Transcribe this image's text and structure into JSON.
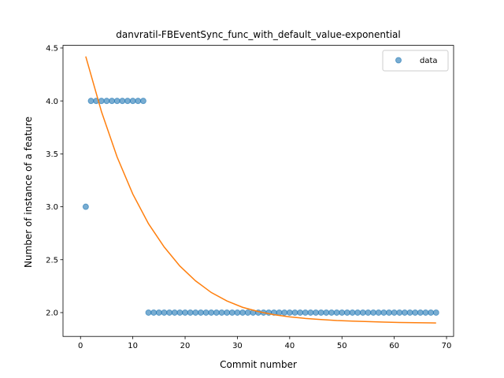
{
  "chart_data": {
    "type": "scatter",
    "title": "danvratil-FBEventSync_func_with_default_value-exponential",
    "xlabel": "Commit number",
    "ylabel": "Number of instance of a feature",
    "xlim": [
      -3.35,
      71.35
    ],
    "ylim": [
      1.775,
      4.525
    ],
    "xticks": [
      0,
      10,
      20,
      30,
      40,
      50,
      60,
      70
    ],
    "yticks": [
      2.0,
      2.5,
      3.0,
      3.5,
      4.0,
      4.5
    ],
    "ytick_labels": [
      "2.0",
      "2.5",
      "3.0",
      "3.5",
      "4.0",
      "4.5"
    ],
    "grid": false,
    "legend": {
      "position": "top-right",
      "entries": [
        "data"
      ]
    },
    "colors": {
      "data": "#1f77b4",
      "fit": "#ff7f0e"
    },
    "series": [
      {
        "name": "data",
        "kind": "scatter",
        "x": [
          1,
          2,
          3,
          4,
          5,
          6,
          7,
          8,
          9,
          10,
          11,
          12,
          13,
          14,
          15,
          16,
          17,
          18,
          19,
          20,
          21,
          22,
          23,
          24,
          25,
          26,
          27,
          28,
          29,
          30,
          31,
          32,
          33,
          34,
          35,
          36,
          37,
          38,
          39,
          40,
          41,
          42,
          43,
          44,
          45,
          46,
          47,
          48,
          49,
          50,
          51,
          52,
          53,
          54,
          55,
          56,
          57,
          58,
          59,
          60,
          61,
          62,
          63,
          64,
          65,
          66,
          67,
          68
        ],
        "y": [
          3,
          4,
          4,
          4,
          4,
          4,
          4,
          4,
          4,
          4,
          4,
          4,
          2,
          2,
          2,
          2,
          2,
          2,
          2,
          2,
          2,
          2,
          2,
          2,
          2,
          2,
          2,
          2,
          2,
          2,
          2,
          2,
          2,
          2,
          2,
          2,
          2,
          2,
          2,
          2,
          2,
          2,
          2,
          2,
          2,
          2,
          2,
          2,
          2,
          2,
          2,
          2,
          2,
          2,
          2,
          2,
          2,
          2,
          2,
          2,
          2,
          2,
          2,
          2,
          2,
          2,
          2,
          2
        ]
      },
      {
        "kind": "line",
        "x": [
          1,
          4,
          7,
          10,
          13,
          16,
          19,
          22,
          25,
          28,
          31,
          34,
          37,
          40,
          43,
          46,
          49,
          52,
          55,
          58,
          61,
          64,
          67,
          68
        ],
        "y": [
          4.42,
          3.9,
          3.47,
          3.12,
          2.84,
          2.62,
          2.44,
          2.3,
          2.19,
          2.11,
          2.05,
          2.01,
          1.98,
          1.96,
          1.945,
          1.935,
          1.925,
          1.92,
          1.915,
          1.91,
          1.907,
          1.905,
          1.903,
          1.902
        ]
      }
    ]
  }
}
